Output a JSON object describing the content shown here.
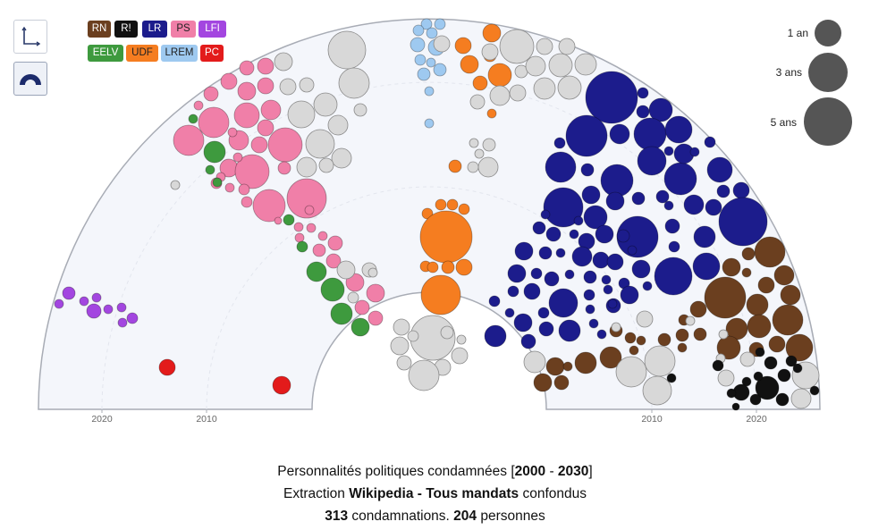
{
  "toolbar": {
    "axes_button": "axes-view",
    "hemicycle_button": "hemicycle-view"
  },
  "legend": [
    {
      "code": "RN",
      "color": "#6b3f1f",
      "text_color": "#ffffff"
    },
    {
      "code": "R!",
      "color": "#111111",
      "text_color": "#ffffff"
    },
    {
      "code": "LR",
      "color": "#1c1c8c",
      "text_color": "#ffffff"
    },
    {
      "code": "PS",
      "color": "#f07fa8",
      "text_color": "#222222"
    },
    {
      "code": "LFI",
      "color": "#a346e0",
      "text_color": "#ffffff"
    },
    {
      "code": "EELV",
      "color": "#3e9a3e",
      "text_color": "#ffffff"
    },
    {
      "code": "UDF",
      "color": "#f57d20",
      "text_color": "#222222"
    },
    {
      "code": "LREM",
      "color": "#9ec9f0",
      "text_color": "#222222"
    },
    {
      "code": "PC",
      "color": "#e31b1b",
      "text_color": "#ffffff"
    }
  ],
  "size_legend": [
    {
      "label": "1 an",
      "years": 1
    },
    {
      "label": "3 ans",
      "years": 3
    },
    {
      "label": "5 ans",
      "years": 5
    }
  ],
  "chart_data": {
    "type": "scatter",
    "layout": "hemicycle",
    "x_range": [
      2000,
      2030
    ],
    "ticks_left": [
      "2020",
      "2010"
    ],
    "ticks_right": [
      "2010",
      "2020"
    ],
    "size_encoding": "durée de condamnation (ans)",
    "groups_approx_count": {
      "LR": 74,
      "RN": 40,
      "PS": 46,
      "EELV": 12,
      "UDF": 24,
      "LREM": 20,
      "LFI": 10,
      "R!": 16,
      "PC": 2,
      "autres": 69
    },
    "total_condamnations": 313,
    "total_personnes": 204
  },
  "caption": {
    "line1_prefix": "Personnalités politiques condamnées [",
    "line1_from": "2000",
    "line1_sep": " - ",
    "line1_to": "2030",
    "line1_suffix": "]",
    "line2_prefix": "Extraction ",
    "line2_source": "Wikipedia - Tous mandats",
    "line2_suffix": " confondus",
    "line3_count": "313",
    "line3_mid": " condamnations. ",
    "line3_people": "204",
    "line3_suffix": " personnes"
  },
  "colors": {
    "other": "#d8d8d8",
    "hemi_bg": "#f4f6fb",
    "hemi_stroke": "#a8acb5"
  }
}
